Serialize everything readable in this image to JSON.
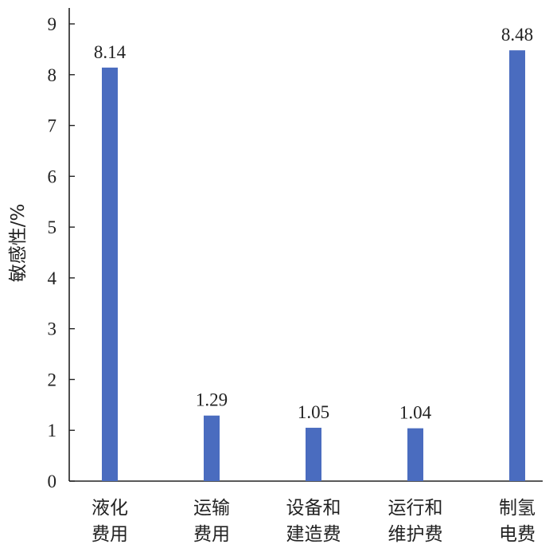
{
  "chart_data": {
    "type": "bar",
    "categories": [
      [
        "液化",
        "费用"
      ],
      [
        "运输",
        "费用"
      ],
      [
        "设备和",
        "建造费"
      ],
      [
        "运行和",
        "维护费"
      ],
      [
        "制氢",
        "电费"
      ]
    ],
    "values": [
      8.14,
      1.29,
      1.05,
      1.04,
      8.48
    ],
    "data_labels": [
      "8.14",
      "1.29",
      "1.05",
      "1.04",
      "8.48"
    ],
    "ylabel": "敏感性/%",
    "ylim": [
      0,
      9
    ],
    "yticks": [
      0,
      1,
      2,
      3,
      4,
      5,
      6,
      7,
      8,
      9
    ],
    "bar_color": "#4a6cbf",
    "grid": false,
    "legend": "none"
  }
}
